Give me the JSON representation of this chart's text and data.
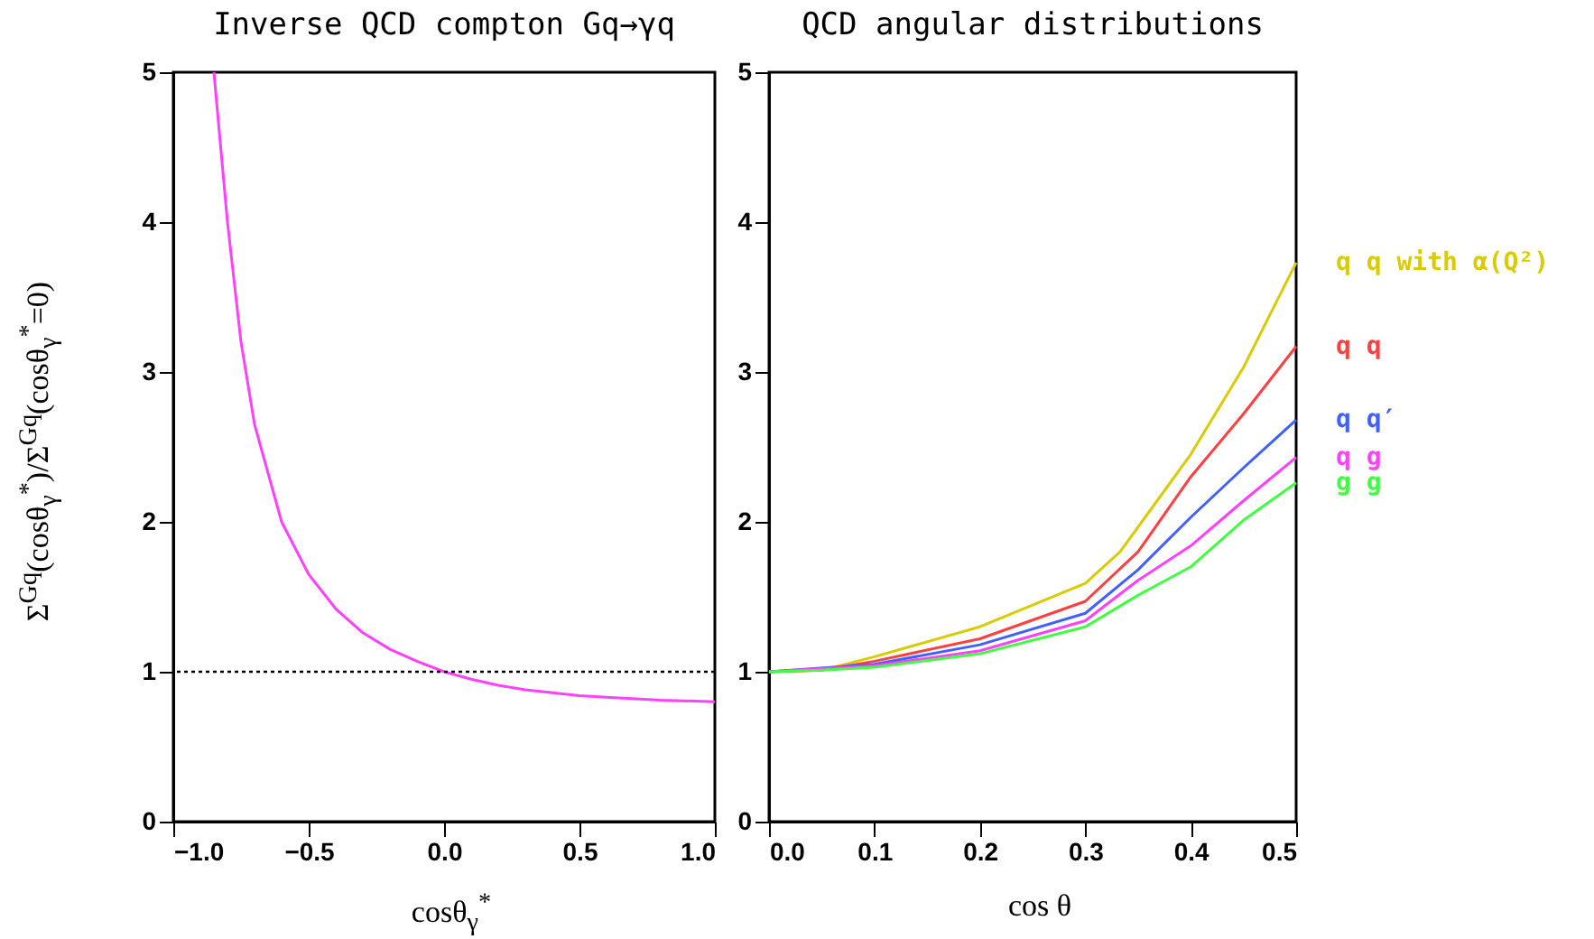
{
  "chart_data": [
    {
      "type": "line",
      "title": "Inverse QCD compton Gq→γq",
      "xlabel": "cosθ$_{γ}$$^{*}$",
      "ylabel": "Σ$^{Gq}$(cosθ$_{γ}$$^{*}$)/Σ$^{Gq}$(cosθ$_{γ}$$^{*}$=0)",
      "xlim": [
        -1,
        1
      ],
      "ylim": [
        0,
        5
      ],
      "xticks": [
        {
          "value": -1,
          "label": "−1.0"
        },
        {
          "value": -0.5,
          "label": "−0.5"
        },
        {
          "value": 0,
          "label": "0.0"
        },
        {
          "value": 0.5,
          "label": "0.5"
        },
        {
          "value": 1,
          "label": "1.0"
        }
      ],
      "yticks": [
        0,
        1,
        2,
        3,
        4,
        5
      ],
      "series": [
        {
          "color": "#ff40ff",
          "x": [
            -0.85,
            -0.8,
            -0.75,
            -0.7,
            -0.6,
            -0.5,
            -0.4,
            -0.3,
            -0.2,
            -0.1,
            0,
            0.1,
            0.2,
            0.3,
            0.4,
            0.5,
            0.6,
            0.8,
            1.0
          ],
          "values": [
            5.0,
            4.0,
            3.2,
            2.65,
            2.0,
            1.65,
            1.42,
            1.26,
            1.15,
            1.07,
            1.0,
            0.95,
            0.91,
            0.88,
            0.86,
            0.84,
            0.83,
            0.81,
            0.8
          ]
        }
      ],
      "ref_lines": [
        {
          "axis": "y",
          "value": 1,
          "color": "#000000",
          "line_style": "dotted"
        }
      ]
    },
    {
      "type": "line",
      "title": "QCD angular distributions",
      "xlabel": "cos θ",
      "xlim": [
        0,
        0.5
      ],
      "ylim": [
        0,
        5
      ],
      "xticks": [
        {
          "value": 0,
          "label": "0.0"
        },
        0.1,
        0.2,
        0.3,
        0.4,
        0.5
      ],
      "yticks": [
        0,
        1,
        2,
        3,
        4,
        5
      ],
      "series": [
        {
          "name": "q q with α(Q²)",
          "color": "#d8cc00",
          "x": [
            0,
            0.05,
            0.1,
            0.2,
            0.3,
            0.333,
            0.4,
            0.45,
            0.5
          ],
          "values": [
            1.0,
            1.01,
            1.1,
            1.3,
            1.59,
            1.8,
            2.45,
            3.03,
            3.73
          ]
        },
        {
          "name": "q q",
          "color": "#ff4040",
          "x": [
            0,
            0.05,
            0.1,
            0.2,
            0.3,
            0.35,
            0.4,
            0.45,
            0.5
          ],
          "values": [
            1.0,
            1.01,
            1.07,
            1.22,
            1.47,
            1.8,
            2.3,
            2.72,
            3.17
          ]
        },
        {
          "name": "q q′",
          "color": "#4060ff",
          "x": [
            0,
            0.1,
            0.2,
            0.3,
            0.35,
            0.4,
            0.45,
            0.5
          ],
          "values": [
            1.0,
            1.05,
            1.18,
            1.39,
            1.68,
            2.03,
            2.36,
            2.68
          ]
        },
        {
          "name": "q g",
          "color": "#ff40ff",
          "x": [
            0,
            0.1,
            0.2,
            0.3,
            0.35,
            0.4,
            0.45,
            0.5
          ],
          "values": [
            1.0,
            1.04,
            1.14,
            1.34,
            1.61,
            1.84,
            2.14,
            2.43
          ]
        },
        {
          "name": "g g",
          "color": "#40ff40",
          "x": [
            0,
            0.05,
            0.1,
            0.2,
            0.3,
            0.35,
            0.4,
            0.45,
            0.5
          ],
          "values": [
            1.0,
            1.01,
            1.03,
            1.12,
            1.3,
            1.51,
            1.7,
            2.01,
            2.26
          ]
        }
      ]
    }
  ]
}
